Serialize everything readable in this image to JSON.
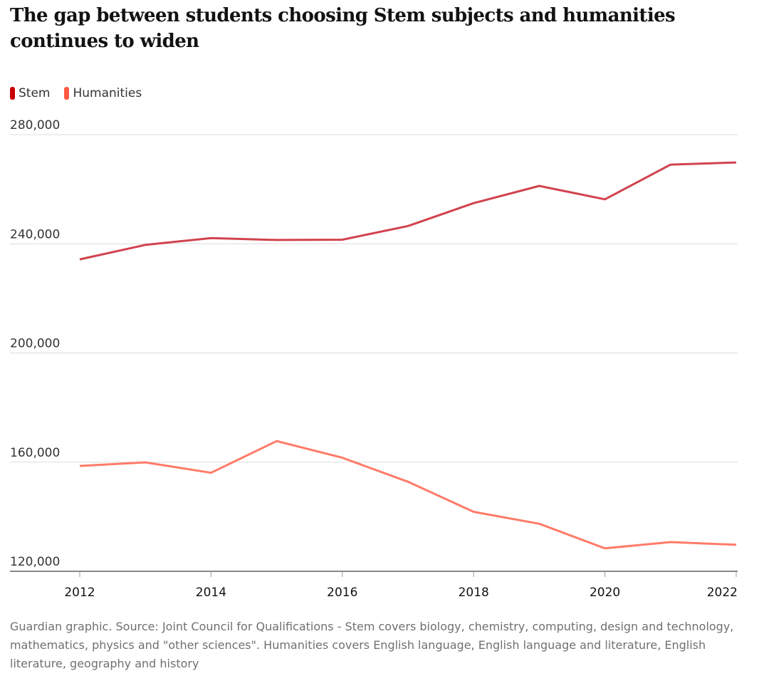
{
  "chart_data": {
    "type": "line",
    "title": "The gap between students choosing Stem subjects and humanities continues to widen",
    "xlabel": "",
    "ylabel": "",
    "x": [
      2012,
      2013,
      2014,
      2015,
      2016,
      2017,
      2018,
      2019,
      2020,
      2021,
      2022
    ],
    "xticks": [
      "2012",
      "2014",
      "2016",
      "2018",
      "2020",
      "2022"
    ],
    "xlim": [
      2011,
      2022
    ],
    "ylim": [
      120000,
      280000
    ],
    "yticks": [
      "280,000",
      "240,000",
      "200,000",
      "160,000",
      "120,000"
    ],
    "ytick_values": [
      280000,
      240000,
      200000,
      160000,
      120000
    ],
    "grid": true,
    "legend_position": "top-left",
    "series": [
      {
        "name": "Stem",
        "color": "#d1434e",
        "legend_color": "#c70000",
        "values": [
          234300,
          239600,
          242100,
          241400,
          241500,
          246500,
          254900,
          261200,
          256300,
          269000,
          269800
        ]
      },
      {
        "name": "Humanities",
        "color": "#ff7b69",
        "legend_color": "#ff5943",
        "values": [
          158600,
          159900,
          156100,
          167700,
          161600,
          152800,
          141800,
          137400,
          128400,
          130700,
          129700
        ]
      }
    ],
    "source": "Guardian graphic. Source: Joint Council for Qualifications - Stem covers biology, chemistry, computing, design and technology, mathematics, physics and \"other sciences\". Humanities covers English language, English language and literature, English literature, geography and history"
  }
}
